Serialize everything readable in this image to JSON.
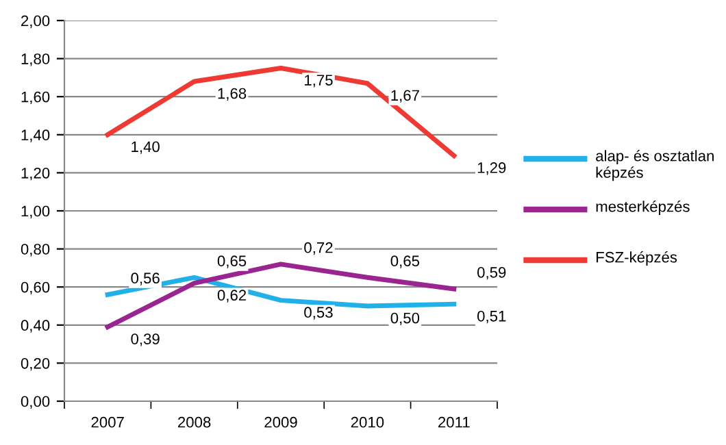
{
  "chart_data": {
    "type": "line",
    "categories": [
      "2007",
      "2008",
      "2009",
      "2010",
      "2011"
    ],
    "series": [
      {
        "name": "alap- és osztatlan képzés",
        "color": "#22b0e8",
        "values": [
          0.56,
          0.65,
          0.53,
          0.5,
          0.51
        ],
        "value_labels": [
          "0,56",
          "0,65",
          "0,53",
          "0,50",
          "0,51"
        ]
      },
      {
        "name": "mesterképzés",
        "color": "#9b2590",
        "values": [
          0.39,
          0.62,
          0.72,
          0.65,
          0.59
        ],
        "value_labels": [
          "0,39",
          "0,62",
          "0,72",
          "0,65",
          "0,59"
        ]
      },
      {
        "name": "FSZ-képzés",
        "color": "#ee3a33",
        "values": [
          1.4,
          1.68,
          1.75,
          1.67,
          1.29
        ],
        "value_labels": [
          "1,40",
          "1,68",
          "1,75",
          "1,67",
          "1,29"
        ]
      }
    ],
    "ylim": [
      0,
      2
    ],
    "yticks": [
      {
        "value": 0,
        "label": "0,00"
      },
      {
        "value": 0.2,
        "label": "0,20"
      },
      {
        "value": 0.4,
        "label": "0,40"
      },
      {
        "value": 0.6,
        "label": "0,60"
      },
      {
        "value": 0.8,
        "label": "0,80"
      },
      {
        "value": 1.0,
        "label": "1,00"
      },
      {
        "value": 1.2,
        "label": "1,20"
      },
      {
        "value": 1.4,
        "label": "1,40"
      },
      {
        "value": 1.6,
        "label": "1,60"
      },
      {
        "value": 1.8,
        "label": "1,80"
      },
      {
        "value": 2.0,
        "label": "2,00"
      }
    ],
    "grid": "y",
    "legend": "right",
    "marker": "none",
    "line_style": "solid"
  }
}
